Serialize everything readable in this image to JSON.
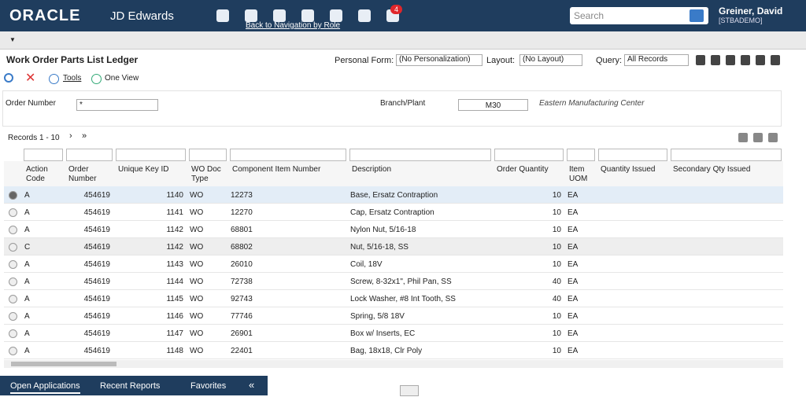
{
  "header": {
    "brand": "ORACLE",
    "product": "JD Edwards",
    "notification_count": "4",
    "nav_link": "Back to Navigation by Role",
    "search_placeholder": "Search",
    "user_name": "Greiner, David",
    "user_env": "[STBADEMO]"
  },
  "form": {
    "title": "Work Order Parts List Ledger",
    "personal_form_label": "Personal Form:",
    "personal_form_value": "(No Personalization)",
    "layout_label": "Layout:",
    "layout_value": "(No Layout)",
    "query_label": "Query:",
    "query_value": "All Records"
  },
  "toolbar": {
    "tools": "Tools",
    "one_view": "One View"
  },
  "filters": {
    "order_number_label": "Order Number",
    "order_number_value": "*",
    "branch_label": "Branch/Plant",
    "branch_value": "M30",
    "branch_desc": "Eastern Manufacturing Center"
  },
  "grid": {
    "records_label": "Records 1 - 10",
    "columns": [
      "Action Code",
      "Order Number",
      "Unique Key ID",
      "WO Doc Type",
      "Component Item Number",
      "Description",
      "Order Quantity",
      "Item UOM",
      "Quantity Issued",
      "Secondary Qty Issued"
    ],
    "rows": [
      [
        "A",
        "454619",
        "1140",
        "WO",
        "12273",
        "Base, Ersatz Contraption",
        "10",
        "EA"
      ],
      [
        "A",
        "454619",
        "1141",
        "WO",
        "12270",
        "Cap, Ersatz Contraption",
        "10",
        "EA"
      ],
      [
        "A",
        "454619",
        "1142",
        "WO",
        "68801",
        "Nylon Nut, 5/16-18",
        "10",
        "EA"
      ],
      [
        "C",
        "454619",
        "1142",
        "WO",
        "68802",
        "Nut, 5/16-18, SS",
        "10",
        "EA"
      ],
      [
        "A",
        "454619",
        "1143",
        "WO",
        "26010",
        "Coil, 18V",
        "10",
        "EA"
      ],
      [
        "A",
        "454619",
        "1144",
        "WO",
        "72738",
        "Screw, 8-32x1\", Phil Pan, SS",
        "40",
        "EA"
      ],
      [
        "A",
        "454619",
        "1145",
        "WO",
        "92743",
        "Lock Washer, #8 Int Tooth, SS",
        "40",
        "EA"
      ],
      [
        "A",
        "454619",
        "1146",
        "WO",
        "77746",
        "Spring, 5/8 18V",
        "10",
        "EA"
      ],
      [
        "A",
        "454619",
        "1147",
        "WO",
        "26901",
        "Box w/ Inserts, EC",
        "10",
        "EA"
      ],
      [
        "A",
        "454619",
        "1148",
        "WO",
        "22401",
        "Bag, 18x18, Clr Poly",
        "10",
        "EA"
      ]
    ]
  },
  "footer": {
    "tabs": [
      "Open Applications",
      "Recent Reports",
      "Favorites"
    ]
  }
}
